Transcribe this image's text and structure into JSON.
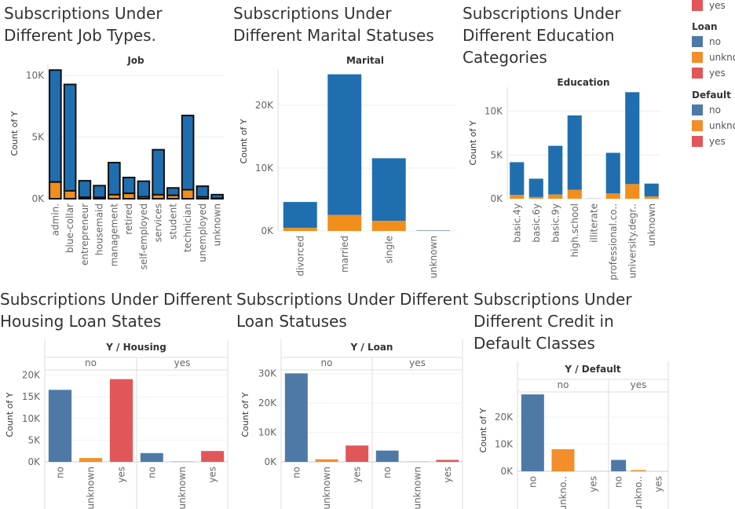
{
  "titles": {
    "job": "Subscriptions Under\nDifferent Job Types.",
    "marital": "Subscriptions Under\nDifferent Marital Statuses",
    "education": "Subscriptions Under\nDifferent Education\nCategories",
    "housing": "Subscriptions Under Different\nHousing Loan States",
    "loan": "Subscriptions Under Different\nLoan Statuses",
    "default": "Subscriptions Under\nDifferent Credit in\nDefault Classes"
  },
  "colors": {
    "no": "#1f6fb0",
    "yes": "#f28e1c",
    "tab_blue": "#4e79a7",
    "tab_orange": "#f28e2b",
    "tab_red": "#e15759"
  },
  "legend": {
    "top_item": "yes",
    "loan": {
      "title": "Loan",
      "items": [
        "no",
        "unknown",
        "yes"
      ],
      "item_labels": [
        "no",
        "unkno",
        "yes"
      ]
    },
    "default": {
      "title": "Default",
      "items": [
        "no",
        "unknown",
        "yes"
      ],
      "item_labels": [
        "no",
        "unkno",
        "yes"
      ]
    }
  },
  "chart_data": [
    {
      "id": "job",
      "type": "bar",
      "stacked": true,
      "header": "Job",
      "ylabel": "Count of Y",
      "ylim": [
        0,
        10500
      ],
      "yticks": [
        0,
        5000,
        10000
      ],
      "ytick_labels": [
        "0K",
        "5K",
        "10K"
      ],
      "categories": [
        "admin.",
        "blue-collar",
        "entrepreneur",
        "housemaid",
        "management",
        "retired",
        "self-employed",
        "services",
        "student",
        "technician",
        "unemployed",
        "unknown"
      ],
      "series": [
        {
          "name": "no",
          "values": [
            9070,
            8620,
            1332,
            954,
            2597,
            1286,
            1272,
            3646,
            600,
            6013,
            870,
            293
          ]
        },
        {
          "name": "yes",
          "values": [
            1352,
            638,
            124,
            106,
            328,
            434,
            149,
            323,
            275,
            730,
            144,
            37
          ]
        }
      ]
    },
    {
      "id": "marital",
      "type": "bar",
      "stacked": true,
      "header": "Marital",
      "ylabel": "Count of Y",
      "ylim": [
        0,
        25000
      ],
      "yticks": [
        0,
        10000,
        20000
      ],
      "ytick_labels": [
        "0K",
        "10K",
        "20K"
      ],
      "categories": [
        "divorced",
        "married",
        "single",
        "unknown"
      ],
      "series": [
        {
          "name": "no",
          "values": [
            4136,
            22396,
            9948,
            68
          ]
        },
        {
          "name": "yes",
          "values": [
            476,
            2532,
            1620,
            12
          ]
        }
      ]
    },
    {
      "id": "education",
      "type": "bar",
      "stacked": true,
      "header": "Education",
      "ylabel": "Count of Y",
      "ylim": [
        0,
        12200
      ],
      "yticks": [
        0,
        5000,
        10000
      ],
      "ytick_labels": [
        "0K",
        "5K",
        "10K"
      ],
      "categories": [
        "basic.4y",
        "basic.6y",
        "basic.9y",
        "high.school",
        "illiterate",
        "professional.co..",
        "university.degr..",
        "unknown"
      ],
      "series": [
        {
          "name": "no",
          "values": [
            3748,
            2104,
            5572,
            8484,
            14,
            4648,
            10498,
            1480
          ]
        },
        {
          "name": "yes",
          "values": [
            428,
            188,
            473,
            1031,
            4,
            595,
            1670,
            251
          ]
        }
      ]
    },
    {
      "id": "housing",
      "type": "bar",
      "header": "Y / Housing",
      "ylabel": "Count of Y",
      "ylim": [
        0,
        21000
      ],
      "yticks": [
        0,
        5000,
        10000,
        15000,
        20000
      ],
      "ytick_labels": [
        "0K",
        "5K",
        "10K",
        "15K",
        "20K"
      ],
      "panels": [
        "no",
        "yes"
      ],
      "categories": [
        "no",
        "unknown",
        "yes"
      ],
      "series": [
        {
          "name": "no",
          "values": [
            16596,
            883,
            19069
          ]
        },
        {
          "name": "yes",
          "values": [
            2026,
            107,
            2507
          ]
        }
      ]
    },
    {
      "id": "loan",
      "type": "bar",
      "header": "Y / Loan",
      "ylabel": "Count of Y",
      "ylim": [
        0,
        31000
      ],
      "yticks": [
        0,
        10000,
        20000,
        30000
      ],
      "ytick_labels": [
        "0K",
        "10K",
        "20K",
        "30K"
      ],
      "panels": [
        "no",
        "yes"
      ],
      "categories": [
        "no",
        "unknown",
        "yes"
      ],
      "series": [
        {
          "name": "no",
          "values": [
            30100,
            883,
            5565
          ]
        },
        {
          "name": "yes",
          "values": [
            3850,
            107,
            683
          ]
        }
      ]
    },
    {
      "id": "default",
      "type": "bar",
      "header": "Y / Default",
      "ylabel": "Count of Y",
      "ylim": [
        0,
        29000
      ],
      "yticks": [
        0,
        10000,
        20000
      ],
      "ytick_labels": [
        "0K",
        "10K",
        "20K"
      ],
      "panels": [
        "no",
        "yes"
      ],
      "categories": [
        "no",
        "unkno..",
        "yes"
      ],
      "series": [
        {
          "name": "no",
          "values": [
            28391,
            8154,
            3
          ]
        },
        {
          "name": "yes",
          "values": [
            4197,
            443,
            0
          ]
        }
      ]
    }
  ]
}
